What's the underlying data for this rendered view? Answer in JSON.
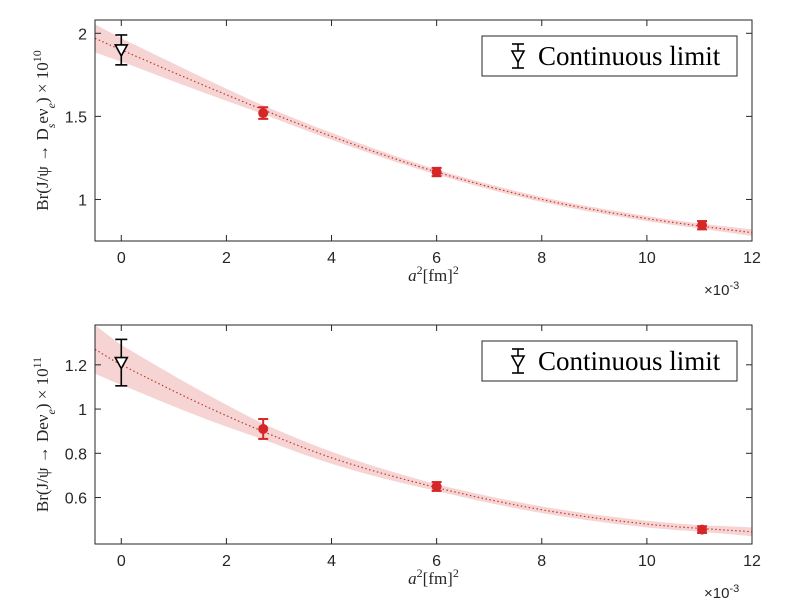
{
  "chart_data": [
    {
      "type": "scatter",
      "panel": "top",
      "ylabel_parts": [
        "Br(J/ψ → D",
        "s",
        "eν",
        "e",
        ") × 10",
        "10"
      ],
      "xlabel_parts": [
        "a",
        "2",
        "[fm]",
        "2"
      ],
      "x_multiplier": "×10",
      "x_multiplier_exp": "-3",
      "xlim": [
        -0.5,
        12
      ],
      "ylim": [
        0.75,
        2.08
      ],
      "xticks": [
        0,
        2,
        4,
        6,
        8,
        10,
        12
      ],
      "yticks": [
        1,
        1.5,
        2
      ],
      "ytick_labels": [
        "1",
        "1.5",
        "2"
      ],
      "series": [
        {
          "name": "",
          "marker": "circle",
          "color": "#d62728",
          "points": [
            {
              "x": 2.7,
              "y": 1.52,
              "err": 0.035
            },
            {
              "x": 6.0,
              "y": 1.165,
              "err": 0.025
            },
            {
              "x": 11.05,
              "y": 0.845,
              "err": 0.025
            }
          ]
        },
        {
          "name": "Continuous limit",
          "marker": "triangle-down",
          "color": "#000000",
          "points": [
            {
              "x": 0,
              "y": 1.9,
              "err": 0.09
            }
          ]
        }
      ],
      "fit": {
        "style": "dotted",
        "color": "#c0392b",
        "band_color": "#f4c6c6",
        "curve": [
          [
            -0.5,
            1.97
          ],
          [
            0,
            1.9
          ],
          [
            2,
            1.63
          ],
          [
            4,
            1.38
          ],
          [
            6,
            1.165
          ],
          [
            8,
            1.0
          ],
          [
            10,
            0.885
          ],
          [
            12,
            0.8
          ]
        ],
        "band_halfwidth": [
          [
            -0.5,
            0.085
          ],
          [
            0,
            0.07
          ],
          [
            2.7,
            0.025
          ],
          [
            6,
            0.015
          ],
          [
            11.05,
            0.015
          ],
          [
            12,
            0.02
          ]
        ]
      },
      "legend": {
        "label": "Continuous limit",
        "position": "top-right"
      },
      "grid": false
    },
    {
      "type": "scatter",
      "panel": "bottom",
      "ylabel_parts": [
        "Br(J/ψ → Deν",
        "e",
        ") × 10",
        "11"
      ],
      "xlabel_parts": [
        "a",
        "2",
        "[fm]",
        "2"
      ],
      "x_multiplier": "×10",
      "x_multiplier_exp": "-3",
      "xlim": [
        -0.5,
        12
      ],
      "ylim": [
        0.39,
        1.38
      ],
      "xticks": [
        0,
        2,
        4,
        6,
        8,
        10,
        12
      ],
      "yticks": [
        0.6,
        0.8,
        1.0,
        1.2
      ],
      "ytick_labels": [
        "0.6",
        "0.8",
        "1",
        "1.2"
      ],
      "series": [
        {
          "name": "",
          "marker": "circle",
          "color": "#d62728",
          "points": [
            {
              "x": 2.7,
              "y": 0.91,
              "err": 0.045
            },
            {
              "x": 6.0,
              "y": 0.65,
              "err": 0.02
            },
            {
              "x": 11.05,
              "y": 0.455,
              "err": 0.015
            }
          ]
        },
        {
          "name": "Continuous limit",
          "marker": "triangle-down",
          "color": "#000000",
          "points": [
            {
              "x": 0,
              "y": 1.21,
              "err": 0.105
            }
          ]
        }
      ],
      "fit": {
        "style": "dotted",
        "color": "#c0392b",
        "band_color": "#f4c6c6",
        "curve": [
          [
            -0.5,
            1.27
          ],
          [
            0,
            1.2
          ],
          [
            2,
            0.97
          ],
          [
            4,
            0.78
          ],
          [
            6,
            0.645
          ],
          [
            8,
            0.545
          ],
          [
            10,
            0.48
          ],
          [
            12,
            0.445
          ]
        ],
        "band_halfwidth": [
          [
            -0.5,
            0.11
          ],
          [
            0,
            0.09
          ],
          [
            2.7,
            0.035
          ],
          [
            6,
            0.015
          ],
          [
            11.05,
            0.015
          ],
          [
            12,
            0.02
          ]
        ]
      },
      "legend": {
        "label": "Continuous limit",
        "position": "top-right"
      },
      "grid": false
    }
  ]
}
